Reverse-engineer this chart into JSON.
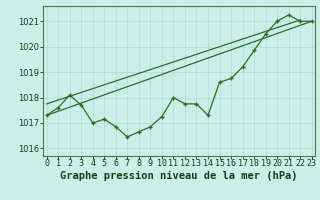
{
  "title": "Graphe pression niveau de la mer (hPa)",
  "background_color": "#cceee8",
  "grid_color": "#aaddda",
  "line_color": "#2d6b2d",
  "x_labels": [
    "0",
    "1",
    "2",
    "3",
    "4",
    "5",
    "6",
    "7",
    "8",
    "9",
    "10",
    "11",
    "12",
    "13",
    "14",
    "15",
    "16",
    "17",
    "18",
    "19",
    "20",
    "21",
    "22",
    "23"
  ],
  "x_values": [
    0,
    1,
    2,
    3,
    4,
    5,
    6,
    7,
    8,
    9,
    10,
    11,
    12,
    13,
    14,
    15,
    16,
    17,
    18,
    19,
    20,
    21,
    22,
    23
  ],
  "y_main": [
    1017.3,
    1017.6,
    1018.1,
    1017.7,
    1017.0,
    1017.15,
    1016.85,
    1016.45,
    1016.65,
    1016.85,
    1017.25,
    1018.0,
    1017.75,
    1017.75,
    1017.3,
    1018.6,
    1018.75,
    1019.2,
    1019.85,
    1020.5,
    1021.0,
    1021.25,
    1021.0,
    1021.0
  ],
  "trend1": [
    0,
    1017.3,
    23,
    1021.0
  ],
  "trend2": [
    0,
    1017.75,
    22,
    1021.05
  ],
  "ylim": [
    1015.7,
    1021.6
  ],
  "yticks": [
    1016,
    1017,
    1018,
    1019,
    1020,
    1021
  ],
  "title_fontsize": 7.5,
  "tick_fontsize": 6.0,
  "label_color": "#1a3a1a",
  "spine_color": "#4a7a4a"
}
